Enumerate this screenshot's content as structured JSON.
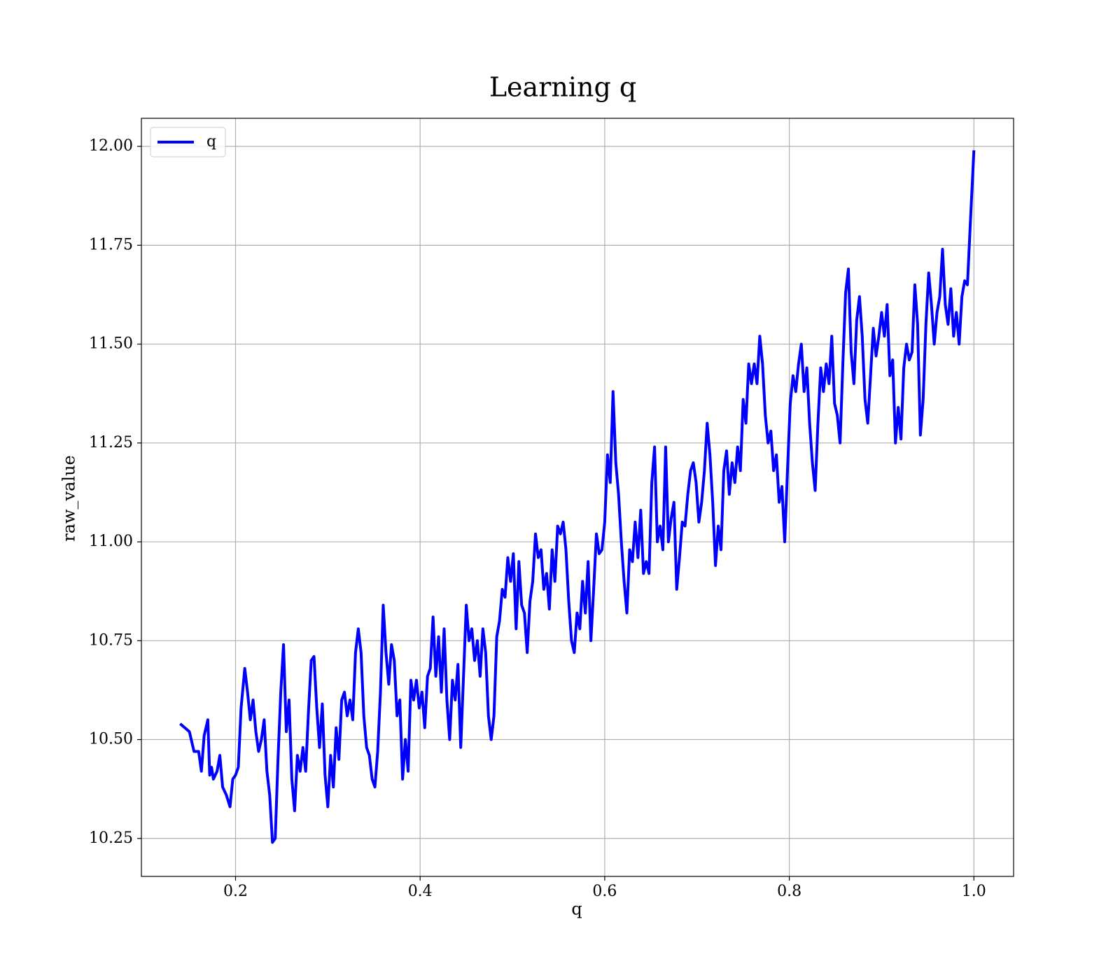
{
  "chart_data": {
    "type": "line",
    "title": "Learning q",
    "xlabel": "q",
    "ylabel": "raw_value",
    "grid": true,
    "legend": "upper left",
    "xlim": [
      0.098,
      1.043
    ],
    "ylim": [
      10.154,
      12.071
    ],
    "xticks": [
      0.2,
      0.4,
      0.6,
      0.8,
      {
        "value": 1,
        "label": "1.0"
      }
    ],
    "yticks": [
      {
        "value": 10.25,
        "label": "10.25"
      },
      {
        "value": 10.5,
        "label": "10.50"
      },
      {
        "value": 10.75,
        "label": "10.75"
      },
      {
        "value": 11,
        "label": "11.00"
      },
      {
        "value": 11.25,
        "label": "11.25"
      },
      {
        "value": 11.5,
        "label": "11.50"
      },
      {
        "value": 11.75,
        "label": "11.75"
      },
      {
        "value": 12,
        "label": "12.00"
      }
    ],
    "x": [
      0.14,
      0.15,
      0.155,
      0.16,
      0.163,
      0.166,
      0.17,
      0.172,
      0.174,
      0.176,
      0.18,
      0.183,
      0.186,
      0.19,
      0.194,
      0.197,
      0.2,
      0.203,
      0.206,
      0.208,
      0.21,
      0.213,
      0.216,
      0.219,
      0.222,
      0.225,
      0.228,
      0.231,
      0.234,
      0.237,
      0.24,
      0.243,
      0.246,
      0.249,
      0.252,
      0.255,
      0.258,
      0.261,
      0.264,
      0.267,
      0.27,
      0.273,
      0.276,
      0.279,
      0.282,
      0.285,
      0.288,
      0.291,
      0.294,
      0.297,
      0.3,
      0.303,
      0.306,
      0.309,
      0.312,
      0.315,
      0.318,
      0.321,
      0.324,
      0.327,
      0.33,
      0.333,
      0.336,
      0.339,
      0.342,
      0.345,
      0.348,
      0.351,
      0.354,
      0.357,
      0.36,
      0.363,
      0.366,
      0.369,
      0.372,
      0.375,
      0.378,
      0.381,
      0.384,
      0.387,
      0.39,
      0.393,
      0.396,
      0.399,
      0.402,
      0.405,
      0.408,
      0.411,
      0.414,
      0.417,
      0.42,
      0.423,
      0.426,
      0.429,
      0.432,
      0.435,
      0.438,
      0.441,
      0.444,
      0.447,
      0.45,
      0.453,
      0.456,
      0.459,
      0.462,
      0.465,
      0.468,
      0.471,
      0.474,
      0.477,
      0.48,
      0.483,
      0.486,
      0.489,
      0.492,
      0.495,
      0.498,
      0.501,
      0.504,
      0.507,
      0.51,
      0.513,
      0.516,
      0.519,
      0.522,
      0.525,
      0.528,
      0.531,
      0.534,
      0.537,
      0.54,
      0.543,
      0.546,
      0.549,
      0.552,
      0.555,
      0.558,
      0.561,
      0.564,
      0.567,
      0.57,
      0.573,
      0.576,
      0.579,
      0.582,
      0.585,
      0.588,
      0.591,
      0.594,
      0.597,
      0.6,
      0.603,
      0.606,
      0.609,
      0.612,
      0.615,
      0.618,
      0.621,
      0.624,
      0.627,
      0.63,
      0.633,
      0.636,
      0.639,
      0.642,
      0.645,
      0.648,
      0.651,
      0.654,
      0.657,
      0.66,
      0.663,
      0.666,
      0.669,
      0.672,
      0.675,
      0.678,
      0.681,
      0.684,
      0.687,
      0.69,
      0.693,
      0.696,
      0.699,
      0.702,
      0.705,
      0.708,
      0.711,
      0.714,
      0.717,
      0.72,
      0.723,
      0.726,
      0.729,
      0.732,
      0.735,
      0.738,
      0.741,
      0.744,
      0.747,
      0.75,
      0.753,
      0.756,
      0.759,
      0.762,
      0.765,
      0.768,
      0.771,
      0.774,
      0.777,
      0.78,
      0.783,
      0.786,
      0.789,
      0.792,
      0.795,
      0.798,
      0.801,
      0.804,
      0.807,
      0.81,
      0.813,
      0.816,
      0.819,
      0.822,
      0.825,
      0.828,
      0.831,
      0.834,
      0.837,
      0.84,
      0.843,
      0.846,
      0.849,
      0.852,
      0.855,
      0.858,
      0.861,
      0.864,
      0.867,
      0.87,
      0.873,
      0.876,
      0.879,
      0.882,
      0.885,
      0.888,
      0.891,
      0.894,
      0.897,
      0.9,
      0.903,
      0.906,
      0.909,
      0.912,
      0.915,
      0.918,
      0.921,
      0.924,
      0.927,
      0.93,
      0.933,
      0.936,
      0.939,
      0.942,
      0.945,
      0.948,
      0.951,
      0.954,
      0.957,
      0.96,
      0.963,
      0.966,
      0.969,
      0.972,
      0.975,
      0.978,
      0.981,
      0.984,
      0.987,
      0.99,
      0.993,
      0.996,
      1.0
    ],
    "series": [
      {
        "name": "q",
        "color": "#0000ff",
        "values": [
          10.54,
          10.52,
          10.47,
          10.47,
          10.42,
          10.51,
          10.55,
          10.41,
          10.43,
          10.4,
          10.42,
          10.46,
          10.38,
          10.36,
          10.33,
          10.4,
          10.41,
          10.43,
          10.58,
          10.63,
          10.68,
          10.62,
          10.55,
          10.6,
          10.52,
          10.47,
          10.5,
          10.55,
          10.42,
          10.36,
          10.24,
          10.25,
          10.45,
          10.62,
          10.74,
          10.52,
          10.6,
          10.4,
          10.32,
          10.46,
          10.42,
          10.48,
          10.42,
          10.57,
          10.7,
          10.71,
          10.58,
          10.48,
          10.59,
          10.41,
          10.33,
          10.46,
          10.38,
          10.53,
          10.45,
          10.6,
          10.62,
          10.56,
          10.6,
          10.55,
          10.72,
          10.78,
          10.72,
          10.56,
          10.48,
          10.46,
          10.4,
          10.38,
          10.47,
          10.62,
          10.84,
          10.72,
          10.64,
          10.74,
          10.7,
          10.56,
          10.6,
          10.4,
          10.5,
          10.42,
          10.65,
          10.6,
          10.65,
          10.58,
          10.62,
          10.53,
          10.66,
          10.68,
          10.81,
          10.66,
          10.76,
          10.62,
          10.78,
          10.6,
          10.5,
          10.65,
          10.6,
          10.69,
          10.48,
          10.66,
          10.84,
          10.75,
          10.78,
          10.7,
          10.75,
          10.66,
          10.78,
          10.72,
          10.56,
          10.5,
          10.56,
          10.76,
          10.8,
          10.88,
          10.86,
          10.96,
          10.9,
          10.97,
          10.78,
          10.95,
          10.84,
          10.82,
          10.72,
          10.85,
          10.9,
          11.02,
          10.96,
          10.98,
          10.88,
          10.92,
          10.83,
          10.98,
          10.9,
          11.04,
          11.02,
          11.05,
          10.98,
          10.85,
          10.75,
          10.72,
          10.82,
          10.78,
          10.9,
          10.82,
          10.95,
          10.75,
          10.88,
          11.02,
          10.97,
          10.98,
          11.05,
          11.22,
          11.15,
          11.38,
          11.2,
          11.12,
          11.0,
          10.9,
          10.82,
          10.98,
          10.95,
          11.05,
          10.96,
          11.08,
          10.92,
          10.95,
          10.92,
          11.15,
          11.24,
          11.0,
          11.04,
          10.98,
          11.24,
          11.0,
          11.06,
          11.1,
          10.88,
          10.96,
          11.05,
          11.04,
          11.12,
          11.18,
          11.2,
          11.15,
          11.05,
          11.1,
          11.18,
          11.3,
          11.22,
          11.1,
          10.94,
          11.04,
          10.98,
          11.18,
          11.23,
          11.12,
          11.2,
          11.15,
          11.24,
          11.18,
          11.36,
          11.3,
          11.45,
          11.4,
          11.45,
          11.4,
          11.52,
          11.45,
          11.32,
          11.25,
          11.28,
          11.18,
          11.22,
          11.1,
          11.14,
          11.0,
          11.18,
          11.35,
          11.42,
          11.38,
          11.45,
          11.5,
          11.38,
          11.44,
          11.3,
          11.2,
          11.13,
          11.3,
          11.44,
          11.38,
          11.45,
          11.4,
          11.52,
          11.35,
          11.32,
          11.25,
          11.45,
          11.63,
          11.69,
          11.48,
          11.4,
          11.56,
          11.62,
          11.52,
          11.36,
          11.3,
          11.42,
          11.54,
          11.47,
          11.52,
          11.58,
          11.52,
          11.6,
          11.42,
          11.46,
          11.25,
          11.34,
          11.26,
          11.44,
          11.5,
          11.46,
          11.48,
          11.65,
          11.55,
          11.27,
          11.36,
          11.55,
          11.68,
          11.6,
          11.5,
          11.58,
          11.62,
          11.74,
          11.6,
          11.55,
          11.64,
          11.52,
          11.58,
          11.5,
          11.62,
          11.66,
          11.65,
          11.8,
          11.99
        ]
      }
    ]
  }
}
